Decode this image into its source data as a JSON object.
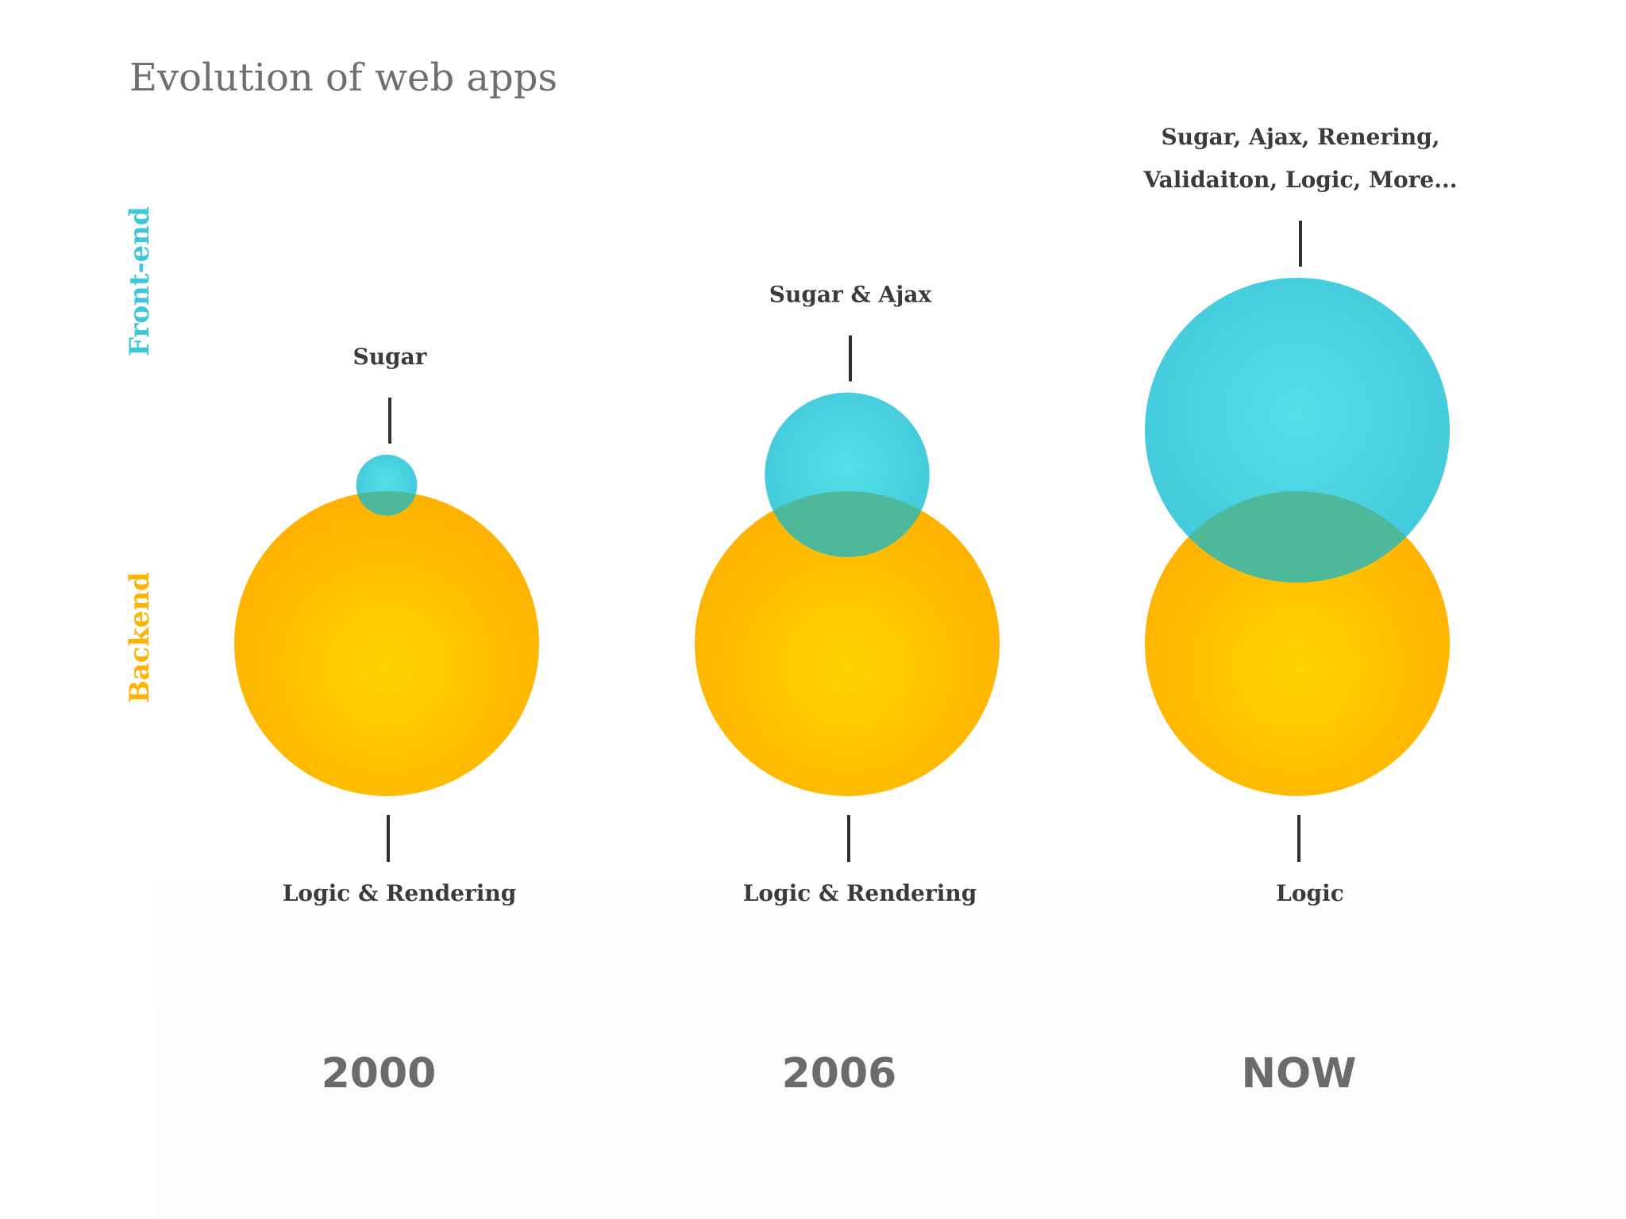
{
  "title": "Evolution of web apps",
  "axis": {
    "frontend_label": "Front-end",
    "backend_label": "Backend"
  },
  "colors": {
    "frontend": "#3CC8DA",
    "frontend_highlight": "#4FDDE8",
    "backend": "#FFB300",
    "backend_highlight": "#FFD400",
    "overlap": "#4DB89A",
    "title": "#6F6F6F",
    "label": "#3B3B3B",
    "year": "#6B6B6B"
  },
  "eras": [
    {
      "year": "2000",
      "frontend_size": 0.2,
      "backend_size": 1.0,
      "frontend_label": [
        "Sugar"
      ],
      "backend_label": "Logic & Rendering"
    },
    {
      "year": "2006",
      "frontend_size": 0.54,
      "backend_size": 1.0,
      "frontend_label": [
        "Sugar & Ajax"
      ],
      "backend_label": "Logic & Rendering"
    },
    {
      "year": "NOW",
      "frontend_size": 1.0,
      "backend_size": 1.0,
      "frontend_label": [
        "Sugar, Ajax, Renering,",
        "Validaiton, Logic, More..."
      ],
      "backend_label": "Logic"
    }
  ]
}
